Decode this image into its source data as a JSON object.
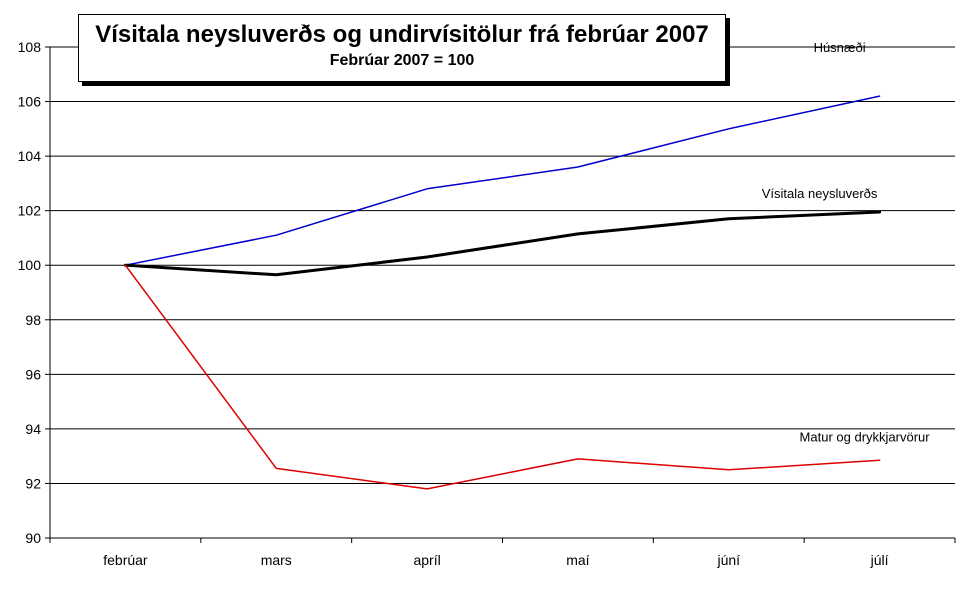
{
  "chart_data": {
    "type": "line",
    "title": "Vísitala neysluverðs og undirvísitölur frá febrúar 2007",
    "subtitle": "Febrúar 2007 = 100",
    "xlabel": "",
    "ylabel": "",
    "categories": [
      "febrúar",
      "mars",
      "apríl",
      "maí",
      "júní",
      "júlí"
    ],
    "ylim": [
      90,
      108
    ],
    "yticks": [
      90,
      92,
      94,
      96,
      98,
      100,
      102,
      104,
      106,
      108
    ],
    "grid": true,
    "series": [
      {
        "name": "Húsnæði",
        "color": "#0000cc",
        "width": 1.5,
        "values": [
          100,
          101.1,
          102.8,
          103.6,
          105.0,
          106.2
        ]
      },
      {
        "name": "Vísitala neysluverðs",
        "color": "#000000",
        "width": 3,
        "values": [
          100,
          99.65,
          100.3,
          101.15,
          101.7,
          101.95
        ]
      },
      {
        "name": "Matur og drykkjarvörur",
        "color": "#dd0000",
        "width": 1.5,
        "values": [
          100,
          92.55,
          91.8,
          92.9,
          92.5,
          92.85
        ]
      }
    ]
  }
}
